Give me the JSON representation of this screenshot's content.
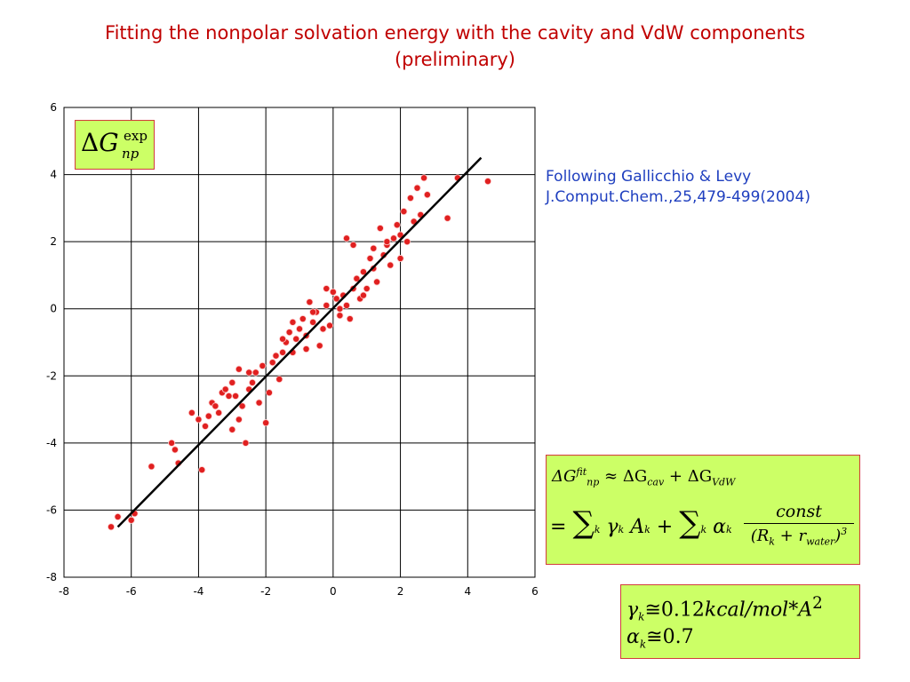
{
  "title": {
    "line1": "Fitting the nonpolar solvation energy with the cavity and VdW components",
    "line2": "(preliminary)"
  },
  "reference": {
    "line1": "Following Gallicchio & Levy",
    "line2": "J.Comput.Chem.,25,479-499(2004)"
  },
  "ylabel_box": {
    "symbol": "G",
    "delta": "Δ",
    "superscript": "exp",
    "subscript": "np"
  },
  "fit_equation": {
    "lhs": "ΔG",
    "lhs_sup": "fit",
    "lhs_sub": "np",
    "approx": "≈ ΔG",
    "cav_sub": "cav",
    "plus": "+ ΔG",
    "vdw_sub": "VdW",
    "eq": "=",
    "sum": "∑",
    "sum_sub": "k",
    "gamma": "γ",
    "k": "k",
    "A": "A",
    "A_sub": "k",
    "plus2": "+",
    "alpha": "α",
    "alpha_sub": "k",
    "numerator": "const",
    "denominator": "(R",
    "den_sub_k": "k",
    "den_plus": " + r",
    "den_sub_water": "water",
    "den_close": ")",
    "den_exp": "3"
  },
  "parameters": {
    "gamma_sym": "γ",
    "gamma_sub": "k",
    "gamma_val": "≅0.12",
    "gamma_unit": "kcal/mol*A",
    "gamma_exp": "2",
    "alpha_sym": "α",
    "alpha_sub": "k",
    "alpha_val": "≅0.7"
  },
  "colors": {
    "title": "#c00000",
    "reference": "#1f3fbf",
    "points": "#e02020",
    "box_fill": "#ccff66",
    "box_border": "#d23c3c"
  },
  "chart_data": {
    "type": "scatter",
    "xlim": [
      -8,
      6
    ],
    "ylim": [
      -8,
      6
    ],
    "x_ticks": [
      -8,
      -6,
      -4,
      -2,
      0,
      2,
      4,
      6
    ],
    "y_ticks": [
      -8,
      -6,
      -4,
      -2,
      0,
      2,
      4,
      6
    ],
    "x_tick_labels": [
      "-8",
      "-6",
      "-4",
      "-2",
      "0",
      "2",
      "4",
      "6"
    ],
    "y_tick_labels": [
      "-8",
      "-6",
      "-4",
      "-2",
      "0",
      "2",
      "4",
      "6"
    ],
    "grid": true,
    "fit_line": {
      "x": [
        -6.4,
        4.4
      ],
      "y": [
        -6.5,
        4.5
      ]
    },
    "points": [
      [
        -6.6,
        -6.5
      ],
      [
        -6.4,
        -6.2
      ],
      [
        -6.0,
        -6.3
      ],
      [
        -5.9,
        -6.1
      ],
      [
        -5.4,
        -4.7
      ],
      [
        -4.8,
        -4.0
      ],
      [
        -4.7,
        -4.2
      ],
      [
        -4.6,
        -4.6
      ],
      [
        -4.2,
        -3.1
      ],
      [
        -4.0,
        -3.3
      ],
      [
        -3.9,
        -4.8
      ],
      [
        -3.8,
        -3.5
      ],
      [
        -3.7,
        -3.2
      ],
      [
        -3.6,
        -2.8
      ],
      [
        -3.5,
        -2.9
      ],
      [
        -3.4,
        -3.1
      ],
      [
        -3.3,
        -2.5
      ],
      [
        -3.2,
        -2.4
      ],
      [
        -3.1,
        -2.6
      ],
      [
        -3.0,
        -3.6
      ],
      [
        -2.9,
        -2.6
      ],
      [
        -2.8,
        -3.3
      ],
      [
        -2.7,
        -2.9
      ],
      [
        -2.6,
        -4.0
      ],
      [
        -2.5,
        -2.4
      ],
      [
        -2.4,
        -2.2
      ],
      [
        -2.3,
        -1.9
      ],
      [
        -2.2,
        -2.8
      ],
      [
        -2.1,
        -1.7
      ],
      [
        -2.0,
        -3.4
      ],
      [
        -1.9,
        -2.5
      ],
      [
        -1.8,
        -1.6
      ],
      [
        -1.7,
        -1.4
      ],
      [
        -1.6,
        -2.1
      ],
      [
        -1.5,
        -1.3
      ],
      [
        -1.4,
        -1.0
      ],
      [
        -1.3,
        -0.7
      ],
      [
        -1.2,
        -1.3
      ],
      [
        -1.1,
        -0.9
      ],
      [
        -1.0,
        -0.6
      ],
      [
        -0.9,
        -0.3
      ],
      [
        -0.8,
        -0.8
      ],
      [
        -0.7,
        0.2
      ],
      [
        -0.6,
        -0.4
      ],
      [
        -0.5,
        -0.1
      ],
      [
        -0.4,
        -1.1
      ],
      [
        -0.3,
        -0.6
      ],
      [
        -0.2,
        0.1
      ],
      [
        -0.1,
        -0.5
      ],
      [
        0.0,
        0.5
      ],
      [
        0.1,
        0.3
      ],
      [
        0.2,
        -0.2
      ],
      [
        0.3,
        0.4
      ],
      [
        0.4,
        0.1
      ],
      [
        0.5,
        -0.3
      ],
      [
        0.6,
        0.6
      ],
      [
        0.7,
        0.9
      ],
      [
        0.8,
        0.3
      ],
      [
        0.9,
        1.1
      ],
      [
        1.0,
        0.6
      ],
      [
        1.1,
        1.5
      ],
      [
        1.2,
        1.2
      ],
      [
        1.3,
        0.8
      ],
      [
        1.4,
        2.4
      ],
      [
        1.5,
        1.6
      ],
      [
        1.6,
        1.9
      ],
      [
        1.7,
        1.3
      ],
      [
        1.8,
        2.1
      ],
      [
        1.9,
        2.5
      ],
      [
        2.0,
        2.2
      ],
      [
        2.1,
        2.9
      ],
      [
        2.2,
        2.0
      ],
      [
        2.3,
        3.3
      ],
      [
        2.4,
        2.6
      ],
      [
        2.5,
        3.6
      ],
      [
        2.6,
        2.8
      ],
      [
        2.7,
        3.9
      ],
      [
        2.8,
        3.4
      ],
      [
        3.4,
        2.7
      ],
      [
        3.7,
        3.9
      ],
      [
        4.6,
        3.8
      ],
      [
        0.4,
        2.1
      ],
      [
        0.6,
        1.9
      ],
      [
        -0.2,
        0.6
      ],
      [
        -1.5,
        -0.9
      ],
      [
        -2.5,
        -1.9
      ],
      [
        -3.0,
        -2.2
      ],
      [
        1.2,
        1.8
      ],
      [
        0.9,
        0.4
      ],
      [
        -0.6,
        -0.1
      ],
      [
        -1.2,
        -0.4
      ],
      [
        0.2,
        0.0
      ],
      [
        -0.8,
        -1.2
      ],
      [
        1.6,
        2.0
      ],
      [
        -2.8,
        -1.8
      ],
      [
        2.0,
        1.5
      ]
    ]
  }
}
